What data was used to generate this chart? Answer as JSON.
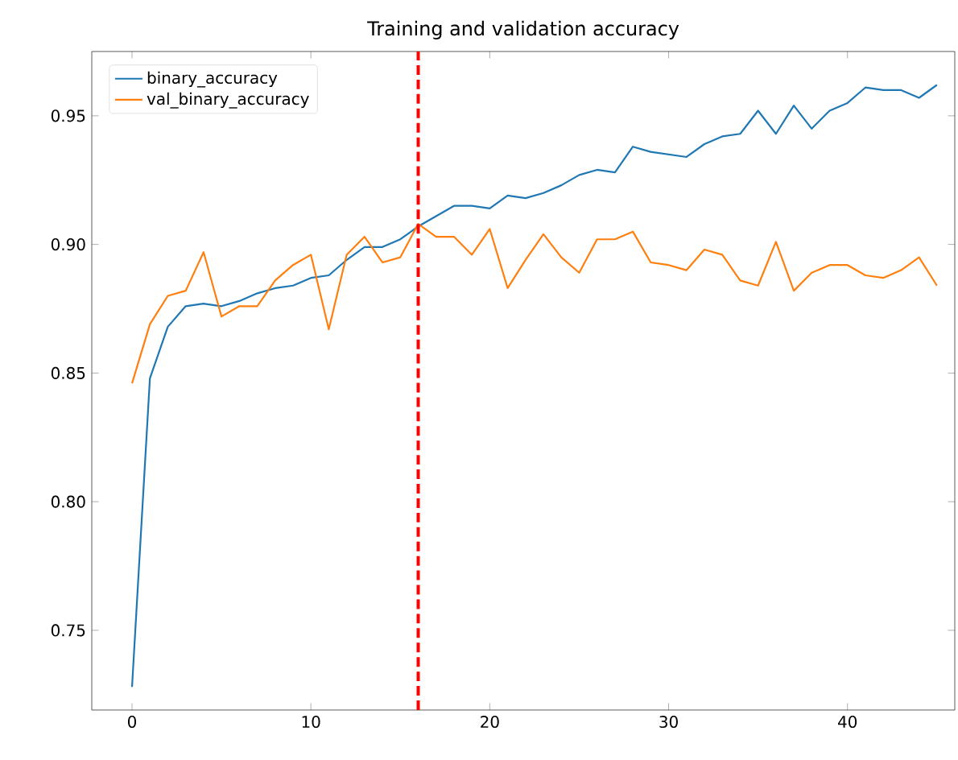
{
  "chart_data": {
    "type": "line",
    "title": "Training and validation accuracy",
    "x": [
      0,
      1,
      2,
      3,
      4,
      5,
      6,
      7,
      8,
      9,
      10,
      11,
      12,
      13,
      14,
      15,
      16,
      17,
      18,
      19,
      20,
      21,
      22,
      23,
      24,
      25,
      26,
      27,
      28,
      29,
      30,
      31,
      32,
      33,
      34,
      35,
      36,
      37,
      38,
      39,
      40,
      41,
      42,
      43,
      44,
      45
    ],
    "series": [
      {
        "name": "binary_accuracy",
        "color": "#1f77b4",
        "values": [
          0.728,
          0.848,
          0.868,
          0.876,
          0.877,
          0.876,
          0.878,
          0.881,
          0.883,
          0.884,
          0.887,
          0.888,
          0.894,
          0.899,
          0.899,
          0.902,
          0.907,
          0.911,
          0.915,
          0.915,
          0.914,
          0.919,
          0.918,
          0.92,
          0.923,
          0.927,
          0.929,
          0.928,
          0.938,
          0.936,
          0.935,
          0.934,
          0.939,
          0.942,
          0.943,
          0.952,
          0.943,
          0.954,
          0.945,
          0.952,
          0.955,
          0.961,
          0.96,
          0.96,
          0.957,
          0.962
        ]
      },
      {
        "name": "val_binary_accuracy",
        "color": "#ff7f0e",
        "values": [
          0.846,
          0.869,
          0.88,
          0.882,
          0.897,
          0.872,
          0.876,
          0.876,
          0.886,
          0.892,
          0.896,
          0.867,
          0.896,
          0.903,
          0.893,
          0.895,
          0.908,
          0.903,
          0.903,
          0.896,
          0.906,
          0.883,
          0.894,
          0.904,
          0.895,
          0.889,
          0.902,
          0.902,
          0.905,
          0.893,
          0.892,
          0.89,
          0.898,
          0.896,
          0.886,
          0.884,
          0.901,
          0.882,
          0.889,
          0.892,
          0.892,
          0.888,
          0.887,
          0.89,
          0.895,
          0.884
        ]
      }
    ],
    "xlim": [
      -2.25,
      46.0
    ],
    "ylim": [
      0.719,
      0.975
    ],
    "xticks": [
      0,
      10,
      20,
      30,
      40
    ],
    "yticks": [
      {
        "value": 0.75,
        "label": "0.75"
      },
      {
        "value": 0.8,
        "label": "0.80"
      },
      {
        "value": 0.85,
        "label": "0.85"
      },
      {
        "value": 0.9,
        "label": "0.90"
      },
      {
        "value": 0.95,
        "label": "0.95"
      }
    ],
    "ref_lines": [
      {
        "axis": "x",
        "value": 16,
        "color": "#ff0000",
        "line_style": "dashed"
      }
    ],
    "legend": "top left",
    "grid": false,
    "marker": "none",
    "line_style": "solid"
  }
}
